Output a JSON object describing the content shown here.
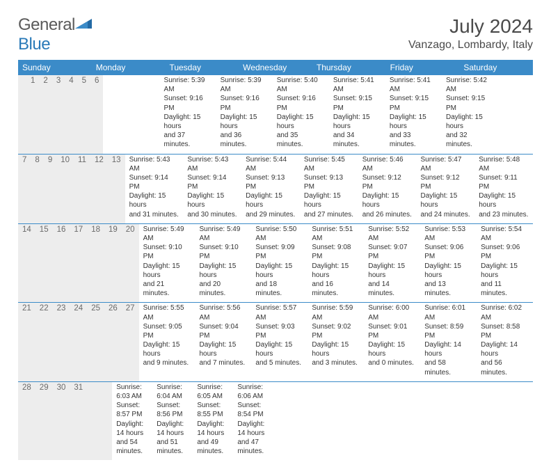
{
  "brand": {
    "text1": "General",
    "text2": "Blue"
  },
  "title": "July 2024",
  "location": "Vanzago, Lombardy, Italy",
  "colors": {
    "header_bg": "#3b8bc8",
    "header_text": "#ffffff",
    "num_bg": "#ededed",
    "num_text": "#6a6a6a",
    "body_text": "#333333",
    "divider": "#3b8bc8",
    "page_bg": "#ffffff"
  },
  "dayNames": [
    "Sunday",
    "Monday",
    "Tuesday",
    "Wednesday",
    "Thursday",
    "Friday",
    "Saturday"
  ],
  "weeks": [
    {
      "nums": [
        "",
        "1",
        "2",
        "3",
        "4",
        "5",
        "6"
      ],
      "cells": [
        [],
        [
          "Sunrise: 5:39 AM",
          "Sunset: 9:16 PM",
          "Daylight: 15 hours",
          "and 37 minutes."
        ],
        [
          "Sunrise: 5:39 AM",
          "Sunset: 9:16 PM",
          "Daylight: 15 hours",
          "and 36 minutes."
        ],
        [
          "Sunrise: 5:40 AM",
          "Sunset: 9:16 PM",
          "Daylight: 15 hours",
          "and 35 minutes."
        ],
        [
          "Sunrise: 5:41 AM",
          "Sunset: 9:15 PM",
          "Daylight: 15 hours",
          "and 34 minutes."
        ],
        [
          "Sunrise: 5:41 AM",
          "Sunset: 9:15 PM",
          "Daylight: 15 hours",
          "and 33 minutes."
        ],
        [
          "Sunrise: 5:42 AM",
          "Sunset: 9:15 PM",
          "Daylight: 15 hours",
          "and 32 minutes."
        ]
      ]
    },
    {
      "nums": [
        "7",
        "8",
        "9",
        "10",
        "11",
        "12",
        "13"
      ],
      "cells": [
        [
          "Sunrise: 5:43 AM",
          "Sunset: 9:14 PM",
          "Daylight: 15 hours",
          "and 31 minutes."
        ],
        [
          "Sunrise: 5:43 AM",
          "Sunset: 9:14 PM",
          "Daylight: 15 hours",
          "and 30 minutes."
        ],
        [
          "Sunrise: 5:44 AM",
          "Sunset: 9:13 PM",
          "Daylight: 15 hours",
          "and 29 minutes."
        ],
        [
          "Sunrise: 5:45 AM",
          "Sunset: 9:13 PM",
          "Daylight: 15 hours",
          "and 27 minutes."
        ],
        [
          "Sunrise: 5:46 AM",
          "Sunset: 9:12 PM",
          "Daylight: 15 hours",
          "and 26 minutes."
        ],
        [
          "Sunrise: 5:47 AM",
          "Sunset: 9:12 PM",
          "Daylight: 15 hours",
          "and 24 minutes."
        ],
        [
          "Sunrise: 5:48 AM",
          "Sunset: 9:11 PM",
          "Daylight: 15 hours",
          "and 23 minutes."
        ]
      ]
    },
    {
      "nums": [
        "14",
        "15",
        "16",
        "17",
        "18",
        "19",
        "20"
      ],
      "cells": [
        [
          "Sunrise: 5:49 AM",
          "Sunset: 9:10 PM",
          "Daylight: 15 hours",
          "and 21 minutes."
        ],
        [
          "Sunrise: 5:49 AM",
          "Sunset: 9:10 PM",
          "Daylight: 15 hours",
          "and 20 minutes."
        ],
        [
          "Sunrise: 5:50 AM",
          "Sunset: 9:09 PM",
          "Daylight: 15 hours",
          "and 18 minutes."
        ],
        [
          "Sunrise: 5:51 AM",
          "Sunset: 9:08 PM",
          "Daylight: 15 hours",
          "and 16 minutes."
        ],
        [
          "Sunrise: 5:52 AM",
          "Sunset: 9:07 PM",
          "Daylight: 15 hours",
          "and 14 minutes."
        ],
        [
          "Sunrise: 5:53 AM",
          "Sunset: 9:06 PM",
          "Daylight: 15 hours",
          "and 13 minutes."
        ],
        [
          "Sunrise: 5:54 AM",
          "Sunset: 9:06 PM",
          "Daylight: 15 hours",
          "and 11 minutes."
        ]
      ]
    },
    {
      "nums": [
        "21",
        "22",
        "23",
        "24",
        "25",
        "26",
        "27"
      ],
      "cells": [
        [
          "Sunrise: 5:55 AM",
          "Sunset: 9:05 PM",
          "Daylight: 15 hours",
          "and 9 minutes."
        ],
        [
          "Sunrise: 5:56 AM",
          "Sunset: 9:04 PM",
          "Daylight: 15 hours",
          "and 7 minutes."
        ],
        [
          "Sunrise: 5:57 AM",
          "Sunset: 9:03 PM",
          "Daylight: 15 hours",
          "and 5 minutes."
        ],
        [
          "Sunrise: 5:59 AM",
          "Sunset: 9:02 PM",
          "Daylight: 15 hours",
          "and 3 minutes."
        ],
        [
          "Sunrise: 6:00 AM",
          "Sunset: 9:01 PM",
          "Daylight: 15 hours",
          "and 0 minutes."
        ],
        [
          "Sunrise: 6:01 AM",
          "Sunset: 8:59 PM",
          "Daylight: 14 hours",
          "and 58 minutes."
        ],
        [
          "Sunrise: 6:02 AM",
          "Sunset: 8:58 PM",
          "Daylight: 14 hours",
          "and 56 minutes."
        ]
      ]
    },
    {
      "nums": [
        "28",
        "29",
        "30",
        "31",
        "",
        "",
        ""
      ],
      "cells": [
        [
          "Sunrise: 6:03 AM",
          "Sunset: 8:57 PM",
          "Daylight: 14 hours",
          "and 54 minutes."
        ],
        [
          "Sunrise: 6:04 AM",
          "Sunset: 8:56 PM",
          "Daylight: 14 hours",
          "and 51 minutes."
        ],
        [
          "Sunrise: 6:05 AM",
          "Sunset: 8:55 PM",
          "Daylight: 14 hours",
          "and 49 minutes."
        ],
        [
          "Sunrise: 6:06 AM",
          "Sunset: 8:54 PM",
          "Daylight: 14 hours",
          "and 47 minutes."
        ],
        [],
        [],
        []
      ]
    }
  ]
}
